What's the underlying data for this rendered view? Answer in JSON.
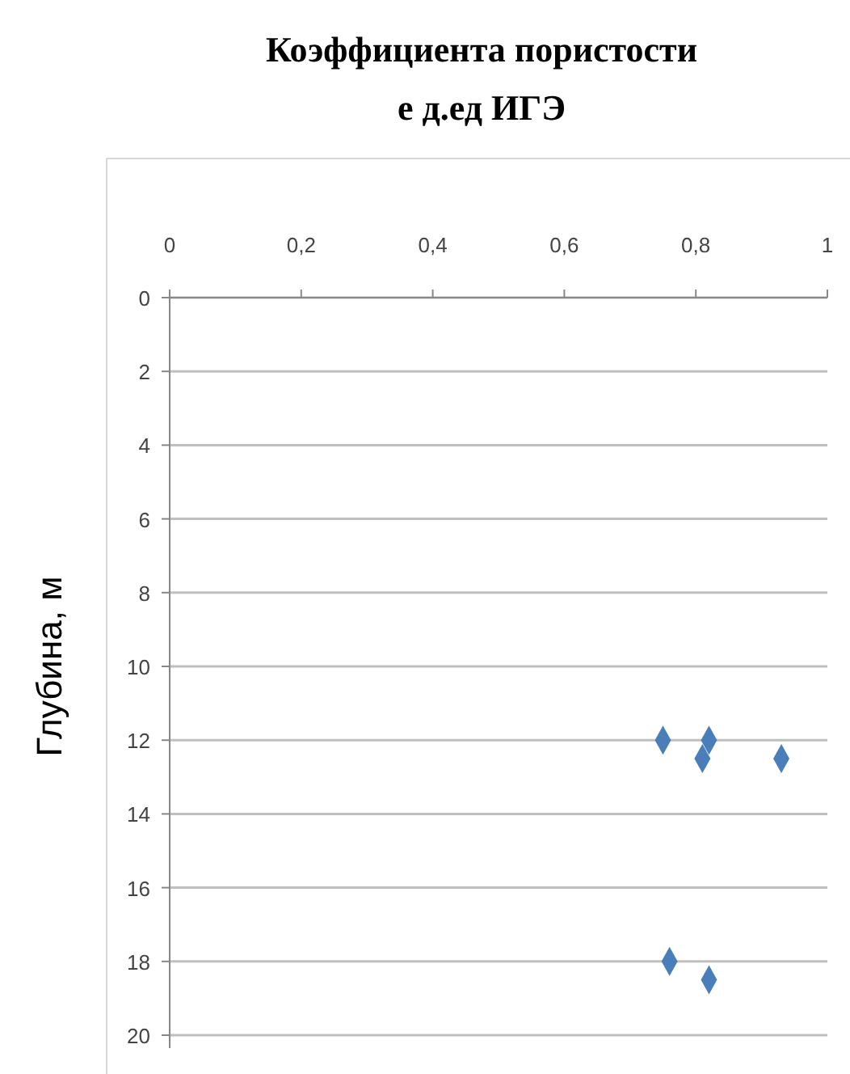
{
  "chart_data": {
    "type": "scatter",
    "title": "Коэффициента пористости\nе д.ед ИГЭ",
    "ylabel": "Глубина, м",
    "x": [
      0.75,
      0.82,
      0.81,
      0.93,
      0.76,
      0.82
    ],
    "values": [
      12,
      12,
      12.5,
      12.5,
      18,
      18.5
    ],
    "color": "#4a7ebb",
    "marker": "diamond",
    "xlim": [
      0,
      1
    ],
    "xticks": [
      {
        "value": 0,
        "label": "0"
      },
      {
        "value": 0.2,
        "label": "0,2"
      },
      {
        "value": 0.4,
        "label": "0,4"
      },
      {
        "value": 0.6,
        "label": "0,6"
      },
      {
        "value": 0.8,
        "label": "0,8"
      },
      {
        "value": 1,
        "label": "1"
      }
    ],
    "ylim": [
      20,
      0
    ],
    "yticks": [
      0,
      2,
      4,
      6,
      8,
      10,
      12,
      14,
      16,
      18,
      20
    ],
    "grid": "y"
  }
}
